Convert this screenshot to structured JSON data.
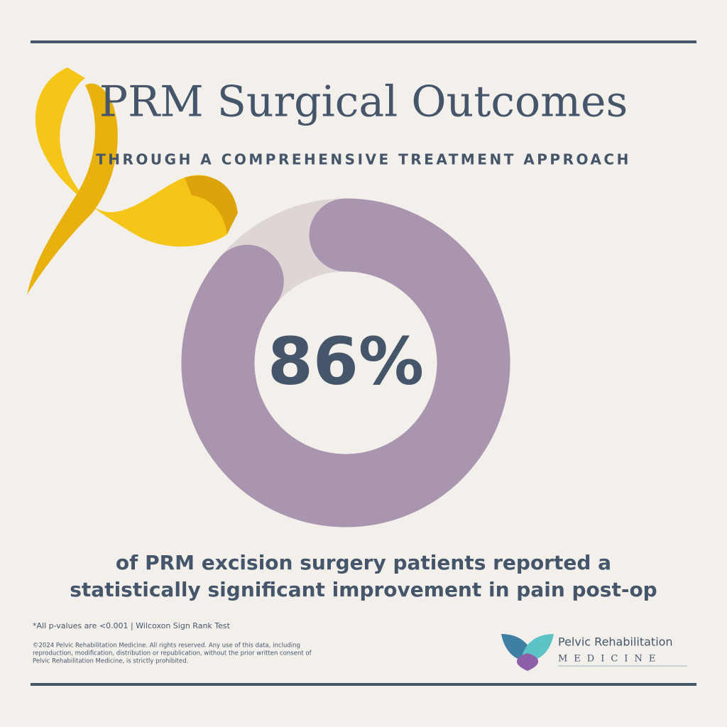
{
  "chart_data": {
    "type": "donut",
    "title": "PRM Surgical Outcomes",
    "subtitle": "THROUGH A COMPREHENSIVE TREATMENT APPROACH",
    "values": [
      86
    ],
    "value_labels": [
      "86%"
    ],
    "color": "#a995b0",
    "track_color": "#ded6d4",
    "description": [
      "of PRM excision surgery patients reported a",
      "statistically significant improvement in pain post-op"
    ],
    "footnote": "*All p-values are <0.001 | Wilcoxon Sign Rank Test",
    "copyright": [
      "©2024 Pelvic Rehabilitation Medicine. All rights reserved.  Any use of this data, including",
      "reproduction, modification, distribution or republication, without the prior written consent of",
      "Pelvic Rehabilitation Medicine, is strictly prohibited."
    ],
    "logo": {
      "name": "Pelvic Rehabilitation",
      "subname": "MEDICINE"
    }
  }
}
